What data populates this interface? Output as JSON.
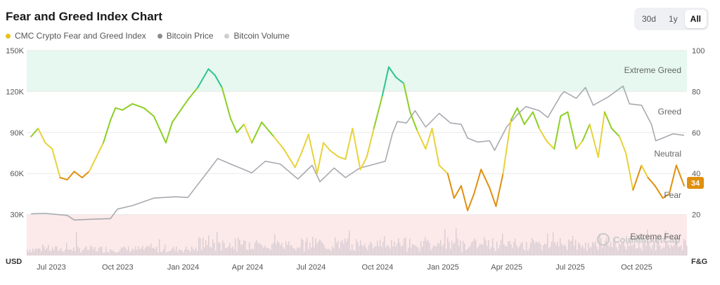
{
  "header": {
    "title": "Fear and Greed Index Chart"
  },
  "range_selector": {
    "options": [
      "30d",
      "1y",
      "All"
    ],
    "selected": "All"
  },
  "legend": [
    {
      "label": "CMC Crypto Fear and Greed Index",
      "color": "#e6c21b"
    },
    {
      "label": "Bitcoin Price",
      "color": "#8c8c8c"
    },
    {
      "label": "Bitcoin Volume",
      "color": "#cfcfcf"
    }
  ],
  "watermark": "CoinMarketCap",
  "current_badge": "34",
  "chart_data": {
    "type": "line",
    "title": "Fear and Greed Index Chart",
    "x_labels": [
      "Jul 2023",
      "Oct 2023",
      "Jan 2024",
      "Apr 2024",
      "Jul 2024",
      "Oct 2024",
      "Jan 2025",
      "Apr 2025",
      "Jul 2025",
      "Oct 2025"
    ],
    "left_axis": {
      "unit": "USD",
      "ticks": [
        "150K",
        "120K",
        "90K",
        "60K",
        "30K"
      ],
      "ylim": [
        0,
        150000
      ]
    },
    "right_axis": {
      "unit": "F&G",
      "ticks": [
        "100",
        "80",
        "60",
        "40",
        "20"
      ],
      "ylim": [
        0,
        100
      ]
    },
    "zones": [
      {
        "name": "Extreme Greed",
        "from": 80,
        "to": 100,
        "color": "#e6f8f0"
      },
      {
        "name": "Greed",
        "from": 60,
        "to": 80,
        "color": null
      },
      {
        "name": "Neutral",
        "from": 40,
        "to": 60,
        "color": null
      },
      {
        "name": "Fear",
        "from": 20,
        "to": 40,
        "color": null
      },
      {
        "name": "Extreme Fear",
        "from": 0,
        "to": 20,
        "color": "#fce9e9"
      }
    ],
    "fg_colors": {
      "extreme_greed": "#2ec48f",
      "greed": "#8ccf24",
      "neutral": "#e8d23a",
      "fear": "#e0900f",
      "extreme_fear": "#e23b4b"
    },
    "series": [
      {
        "name": "CMC Crypto Fear and Greed Index",
        "axis": "right",
        "x": [
          "2023-06-25",
          "2023-07-05",
          "2023-07-15",
          "2023-07-25",
          "2023-08-05",
          "2023-08-15",
          "2023-08-25",
          "2023-09-05",
          "2023-09-15",
          "2023-09-25",
          "2023-10-05",
          "2023-10-15",
          "2023-10-22",
          "2023-11-01",
          "2023-11-15",
          "2023-12-01",
          "2023-12-15",
          "2024-01-01",
          "2024-01-10",
          "2024-01-20",
          "2024-02-01",
          "2024-02-15",
          "2024-03-01",
          "2024-03-10",
          "2024-03-20",
          "2024-04-01",
          "2024-04-10",
          "2024-04-20",
          "2024-05-01",
          "2024-05-15",
          "2024-06-01",
          "2024-06-15",
          "2024-07-01",
          "2024-07-10",
          "2024-07-20",
          "2024-08-01",
          "2024-08-10",
          "2024-08-20",
          "2024-09-01",
          "2024-09-10",
          "2024-09-20",
          "2024-10-01",
          "2024-10-10",
          "2024-10-20",
          "2024-11-01",
          "2024-11-10",
          "2024-11-20",
          "2024-12-01",
          "2024-12-10",
          "2024-12-20",
          "2025-01-01",
          "2025-01-10",
          "2025-01-20",
          "2025-02-01",
          "2025-02-10",
          "2025-02-20",
          "2025-03-01",
          "2025-03-10",
          "2025-03-20",
          "2025-04-01",
          "2025-04-10",
          "2025-04-20",
          "2025-05-01",
          "2025-05-10",
          "2025-05-20",
          "2025-06-01",
          "2025-06-10",
          "2025-06-20",
          "2025-07-01",
          "2025-07-10",
          "2025-07-20",
          "2025-08-01",
          "2025-08-10",
          "2025-08-20",
          "2025-09-01",
          "2025-09-10",
          "2025-09-20",
          "2025-10-01",
          "2025-10-10",
          "2025-10-20",
          "2025-11-01",
          "2025-11-10",
          "2025-11-20",
          "2025-12-01",
          "2025-12-10",
          "2025-12-20",
          "2025-12-31"
        ],
        "y": [
          58,
          62,
          55,
          52,
          38,
          37,
          41,
          38,
          41,
          48,
          55,
          66,
          72,
          71,
          74,
          72,
          68,
          55,
          65,
          70,
          76,
          82,
          91,
          88,
          82,
          67,
          60,
          64,
          55,
          65,
          58,
          52,
          43,
          50,
          59,
          40,
          55,
          51,
          48,
          47,
          62,
          42,
          48,
          62,
          78,
          92,
          87,
          84,
          70,
          61,
          52,
          62,
          44,
          40,
          28,
          34,
          22,
          30,
          42,
          33,
          24,
          40,
          66,
          72,
          64,
          70,
          62,
          56,
          52,
          68,
          70,
          52,
          56,
          64,
          48,
          70,
          62,
          58,
          50,
          32,
          44,
          38,
          34,
          28,
          30,
          44,
          34
        ]
      },
      {
        "name": "Bitcoin Price",
        "axis": "left",
        "x": [
          "2023-06-25",
          "2023-07-15",
          "2023-08-15",
          "2023-08-25",
          "2023-09-15",
          "2023-10-15",
          "2023-10-25",
          "2023-11-15",
          "2023-12-15",
          "2024-01-15",
          "2024-02-01",
          "2024-02-15",
          "2024-03-01",
          "2024-03-14",
          "2024-04-01",
          "2024-04-15",
          "2024-05-01",
          "2024-05-20",
          "2024-06-10",
          "2024-07-05",
          "2024-07-25",
          "2024-08-05",
          "2024-08-25",
          "2024-09-10",
          "2024-09-30",
          "2024-10-15",
          "2024-11-05",
          "2024-11-15",
          "2024-11-22",
          "2024-12-05",
          "2024-12-17",
          "2025-01-01",
          "2025-01-20",
          "2025-02-05",
          "2025-02-20",
          "2025-03-01",
          "2025-03-15",
          "2025-04-01",
          "2025-04-08",
          "2025-04-25",
          "2025-05-10",
          "2025-05-22",
          "2025-06-10",
          "2025-06-22",
          "2025-07-10",
          "2025-07-15",
          "2025-08-01",
          "2025-08-14",
          "2025-08-25",
          "2025-09-15",
          "2025-10-06",
          "2025-10-15",
          "2025-11-01",
          "2025-11-15",
          "2025-11-21",
          "2025-12-01",
          "2025-12-15",
          "2025-12-31"
        ],
        "y": [
          30500,
          30800,
          29400,
          26000,
          26500,
          27000,
          34000,
          36500,
          42000,
          43000,
          42500,
          52000,
          62000,
          71000,
          67000,
          64000,
          60500,
          69000,
          67000,
          56000,
          66000,
          54000,
          64000,
          57000,
          64000,
          66000,
          69000,
          89000,
          98000,
          97000,
          106000,
          94000,
          104000,
          97000,
          96000,
          86000,
          83000,
          84000,
          77000,
          94000,
          103000,
          109000,
          106000,
          101000,
          117000,
          120000,
          115000,
          123000,
          110000,
          116000,
          124000,
          111000,
          110000,
          96000,
          84000,
          86000,
          89000,
          88000
        ]
      }
    ]
  }
}
